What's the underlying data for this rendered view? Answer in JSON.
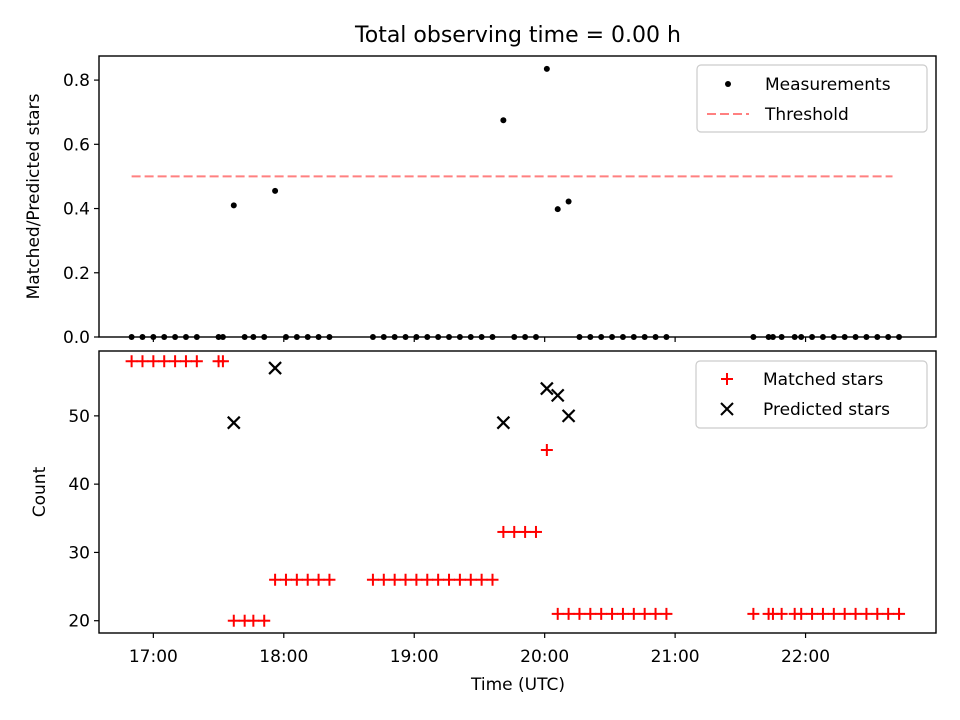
{
  "title": "Total observing time = 0.00 h",
  "colors": {
    "measurement": "#000000",
    "threshold": "#ff8080",
    "matched": "#ff0000",
    "predicted": "#000000"
  },
  "chart_data": [
    {
      "type": "scatter",
      "panel": "top",
      "title": "Total observing time = 0.00 h",
      "xlabel": "",
      "ylabel": "Matched/Predicted stars",
      "xlim": [
        "16:35",
        "23:00"
      ],
      "ylim": [
        0,
        0.875
      ],
      "yticks": [
        0.0,
        0.2,
        0.4,
        0.6,
        0.8
      ],
      "ytick_labels": [
        "0.0",
        "0.2",
        "0.4",
        "0.6",
        "0.8"
      ],
      "legend": "top-right",
      "series": [
        {
          "name": "Measurements",
          "marker": "dot",
          "x": [
            "16:50",
            "16:55",
            "17:00",
            "17:05",
            "17:10",
            "17:15",
            "17:20",
            "17:30",
            "17:32",
            "17:37",
            "17:42",
            "17:46",
            "17:51",
            "17:56",
            "18:01",
            "18:06",
            "18:11",
            "18:16",
            "18:21",
            "18:41",
            "18:46",
            "18:51",
            "18:56",
            "19:01",
            "19:06",
            "19:11",
            "19:16",
            "19:21",
            "19:26",
            "19:31",
            "19:36",
            "19:41",
            "19:46",
            "19:51",
            "19:56",
            "20:01",
            "20:06",
            "20:11",
            "20:16",
            "20:21",
            "20:26",
            "20:31",
            "20:36",
            "20:41",
            "20:46",
            "20:51",
            "20:56",
            "21:36",
            "21:43",
            "21:45",
            "21:49",
            "21:55",
            "21:58",
            "22:03",
            "22:08",
            "22:13",
            "22:18",
            "22:23",
            "22:28",
            "22:33",
            "22:38",
            "22:43"
          ],
          "y": [
            0,
            0,
            0,
            0,
            0,
            0,
            0,
            0,
            0,
            0.41,
            0,
            0,
            0,
            0.455,
            0,
            0,
            0,
            0,
            0,
            0,
            0,
            0,
            0,
            0,
            0,
            0,
            0,
            0,
            0,
            0,
            0,
            0.675,
            0,
            0,
            0,
            0.835,
            0.398,
            0.422,
            0,
            0,
            0,
            0,
            0,
            0,
            0,
            0,
            0,
            0,
            0,
            0,
            0,
            0,
            0,
            0,
            0,
            0,
            0,
            0,
            0,
            0,
            0,
            0
          ]
        },
        {
          "name": "Threshold",
          "style": "dashed",
          "x": [
            "16:50",
            "22:40"
          ],
          "y": [
            0.5,
            0.5
          ]
        }
      ]
    },
    {
      "type": "scatter",
      "panel": "bottom",
      "xlabel": "Time (UTC)",
      "ylabel": "Count",
      "xlim": [
        "16:35",
        "23:00"
      ],
      "ylim": [
        18.2,
        59.5
      ],
      "yticks": [
        20,
        30,
        40,
        50
      ],
      "ytick_labels": [
        "20",
        "30",
        "40",
        "50"
      ],
      "xticks": [
        "17:00",
        "18:00",
        "19:00",
        "20:00",
        "21:00",
        "22:00"
      ],
      "xtick_labels": [
        "17:00",
        "18:00",
        "19:00",
        "20:00",
        "21:00",
        "22:00"
      ],
      "legend": "top-right",
      "series": [
        {
          "name": "Matched stars",
          "marker": "plus",
          "x": [
            "16:50",
            "16:55",
            "17:00",
            "17:05",
            "17:10",
            "17:15",
            "17:20",
            "17:30",
            "17:32",
            "17:37",
            "17:42",
            "17:46",
            "17:51",
            "17:56",
            "18:01",
            "18:06",
            "18:11",
            "18:16",
            "18:21",
            "18:41",
            "18:46",
            "18:51",
            "18:56",
            "19:01",
            "19:06",
            "19:11",
            "19:16",
            "19:21",
            "19:26",
            "19:31",
            "19:36",
            "19:41",
            "19:46",
            "19:51",
            "19:56",
            "20:01",
            "20:06",
            "20:11",
            "20:16",
            "20:21",
            "20:26",
            "20:31",
            "20:36",
            "20:41",
            "20:46",
            "20:51",
            "20:56",
            "21:36",
            "21:43",
            "21:45",
            "21:49",
            "21:55",
            "21:58",
            "22:03",
            "22:08",
            "22:13",
            "22:18",
            "22:23",
            "22:28",
            "22:33",
            "22:38",
            "22:43"
          ],
          "y": [
            58,
            58,
            58,
            58,
            58,
            58,
            58,
            58,
            58,
            20,
            20,
            20,
            20,
            26,
            26,
            26,
            26,
            26,
            26,
            26,
            26,
            26,
            26,
            26,
            26,
            26,
            26,
            26,
            26,
            26,
            26,
            33,
            33,
            33,
            33,
            45,
            21,
            21,
            21,
            21,
            21,
            21,
            21,
            21,
            21,
            21,
            21,
            21,
            21,
            21,
            21,
            21,
            21,
            21,
            21,
            21,
            21,
            21,
            21,
            21,
            21,
            21
          ]
        },
        {
          "name": "Predicted stars",
          "marker": "x",
          "x": [
            "17:37",
            "17:56",
            "19:41",
            "20:01",
            "20:06",
            "20:11"
          ],
          "y": [
            49,
            57,
            49,
            54,
            53,
            50
          ]
        }
      ]
    }
  ]
}
